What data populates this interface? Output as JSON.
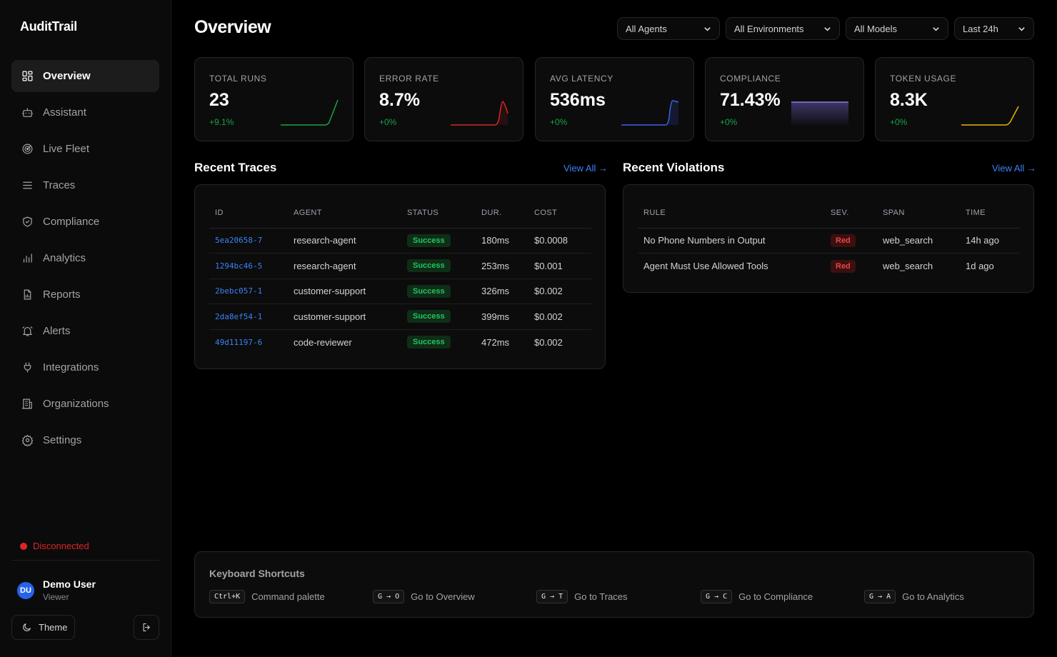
{
  "app": {
    "name": "AuditTrail"
  },
  "sidebar": {
    "items": [
      {
        "label": "Overview",
        "icon": "grid-icon",
        "active": true
      },
      {
        "label": "Assistant",
        "icon": "robot-icon"
      },
      {
        "label": "Live Fleet",
        "icon": "radar-icon"
      },
      {
        "label": "Traces",
        "icon": "list-icon"
      },
      {
        "label": "Compliance",
        "icon": "shield-check-icon"
      },
      {
        "label": "Analytics",
        "icon": "bar-chart-icon"
      },
      {
        "label": "Reports",
        "icon": "file-chart-icon"
      },
      {
        "label": "Alerts",
        "icon": "bell-icon"
      },
      {
        "label": "Integrations",
        "icon": "plug-icon"
      },
      {
        "label": "Organizations",
        "icon": "building-icon"
      },
      {
        "label": "Settings",
        "icon": "gear-icon"
      }
    ],
    "connection_status": "Disconnected",
    "user": {
      "initials": "DU",
      "name": "Demo User",
      "role": "Viewer"
    },
    "theme_label": "Theme"
  },
  "header": {
    "title": "Overview",
    "filters": {
      "agents": "All Agents",
      "environments": "All Environments",
      "models": "All Models",
      "range": "Last 24h"
    }
  },
  "kpis": [
    {
      "label": "TOTAL RUNS",
      "value": "23",
      "delta": "+9.1%",
      "color": "#16a34a"
    },
    {
      "label": "ERROR RATE",
      "value": "8.7%",
      "delta": "+0%",
      "color": "#dc2626"
    },
    {
      "label": "AVG LATENCY",
      "value": "536ms",
      "delta": "+0%",
      "color": "#3b63f0"
    },
    {
      "label": "COMPLIANCE",
      "value": "71.43%",
      "delta": "+0%",
      "color": "#7c6bd6"
    },
    {
      "label": "TOKEN USAGE",
      "value": "8.3K",
      "delta": "+0%",
      "color": "#eab308"
    }
  ],
  "recent_traces": {
    "title": "Recent Traces",
    "view_all": "View All →",
    "columns": [
      "ID",
      "AGENT",
      "STATUS",
      "DUR.",
      "COST"
    ],
    "rows": [
      {
        "id": "5ea20658-7",
        "agent": "research-agent",
        "status": "Success",
        "duration": "180ms",
        "cost": "$0.0008"
      },
      {
        "id": "1294bc46-5",
        "agent": "research-agent",
        "status": "Success",
        "duration": "253ms",
        "cost": "$0.001"
      },
      {
        "id": "2bebc057-1",
        "agent": "customer-support",
        "status": "Success",
        "duration": "326ms",
        "cost": "$0.002"
      },
      {
        "id": "2da8ef54-1",
        "agent": "customer-support",
        "status": "Success",
        "duration": "399ms",
        "cost": "$0.002"
      },
      {
        "id": "49d11197-6",
        "agent": "code-reviewer",
        "status": "Success",
        "duration": "472ms",
        "cost": "$0.002"
      }
    ]
  },
  "recent_violations": {
    "title": "Recent Violations",
    "view_all": "View All →",
    "columns": [
      "RULE",
      "SEV.",
      "SPAN",
      "TIME"
    ],
    "rows": [
      {
        "rule": "No Phone Numbers in Output",
        "severity": "Red",
        "span": "web_search",
        "time": "14h ago"
      },
      {
        "rule": "Agent Must Use Allowed Tools",
        "severity": "Red",
        "span": "web_search",
        "time": "1d ago"
      }
    ]
  },
  "shortcuts": {
    "title": "Keyboard Shortcuts",
    "items": [
      {
        "keys": "Ctrl+K",
        "label": "Command palette"
      },
      {
        "keys": "G → O",
        "label": "Go to Overview"
      },
      {
        "keys": "G → T",
        "label": "Go to Traces"
      },
      {
        "keys": "G → C",
        "label": "Go to Compliance"
      },
      {
        "keys": "G → A",
        "label": "Go to Analytics"
      }
    ]
  }
}
